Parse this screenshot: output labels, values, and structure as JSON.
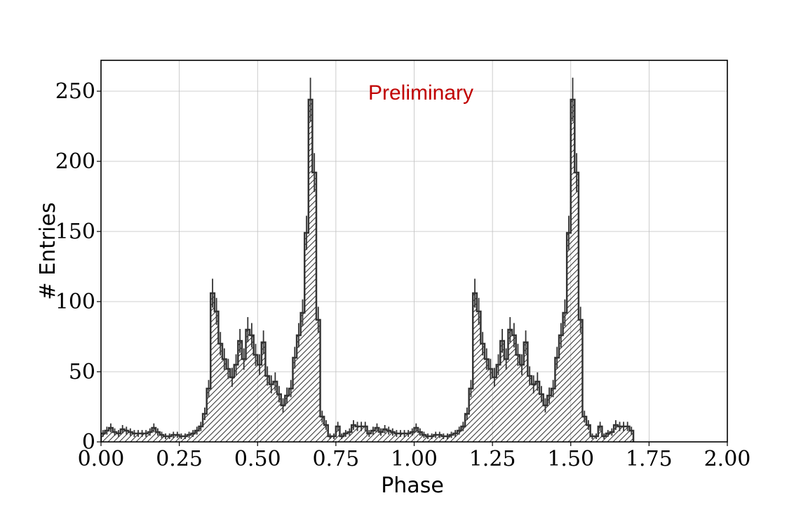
{
  "chart_data": {
    "type": "bar",
    "xlabel": "Phase",
    "ylabel": "# Entries",
    "annotation": "Preliminary",
    "colors": {
      "annotation": "#c00000",
      "hist": "#333333",
      "grid": "#bfbfbf"
    },
    "xlim": [
      0,
      2
    ],
    "ylim": [
      0,
      272
    ],
    "grid": true,
    "hatch": "diagonal",
    "xticks": [
      0,
      0.25,
      0.5,
      0.75,
      1.0,
      1.25,
      1.5,
      1.75,
      2.0
    ],
    "xtick_labels": [
      "0.00",
      "0.25",
      "0.50",
      "0.75",
      "1.00",
      "1.25",
      "1.50",
      "1.75",
      "2.00"
    ],
    "yticks": [
      0,
      50,
      100,
      150,
      200,
      250
    ],
    "ytick_labels": [
      "0",
      "50",
      "100",
      "150",
      "200",
      "250"
    ],
    "bin_width": 0.0125,
    "values": [
      6,
      8,
      10,
      7,
      6,
      9,
      8,
      7,
      6,
      6,
      6,
      6,
      7,
      10,
      7,
      5,
      4,
      4,
      5,
      5,
      4,
      4,
      5,
      6,
      8,
      11,
      20,
      38,
      106,
      93,
      70,
      59,
      52,
      46,
      55,
      72,
      59,
      80,
      76,
      62,
      55,
      71,
      47,
      41,
      43,
      34,
      26,
      33,
      38,
      60,
      76,
      92,
      149,
      244,
      192,
      87,
      18,
      12,
      4,
      4,
      11,
      4,
      6,
      7,
      12,
      11,
      11,
      11,
      6,
      8,
      10,
      7,
      9,
      8,
      7,
      6,
      6,
      6,
      6,
      7,
      10,
      7,
      5,
      4,
      4,
      5,
      5,
      4,
      4,
      5,
      6,
      8,
      11,
      20,
      38,
      106,
      93,
      70,
      59,
      52,
      46,
      55,
      72,
      59,
      80,
      76,
      62,
      55,
      71,
      47,
      41,
      43,
      34,
      26,
      33,
      38,
      60,
      76,
      92,
      149,
      244,
      192,
      87,
      18,
      12,
      4,
      4,
      11,
      4,
      6,
      7,
      12,
      11,
      11,
      11,
      8
    ]
  }
}
